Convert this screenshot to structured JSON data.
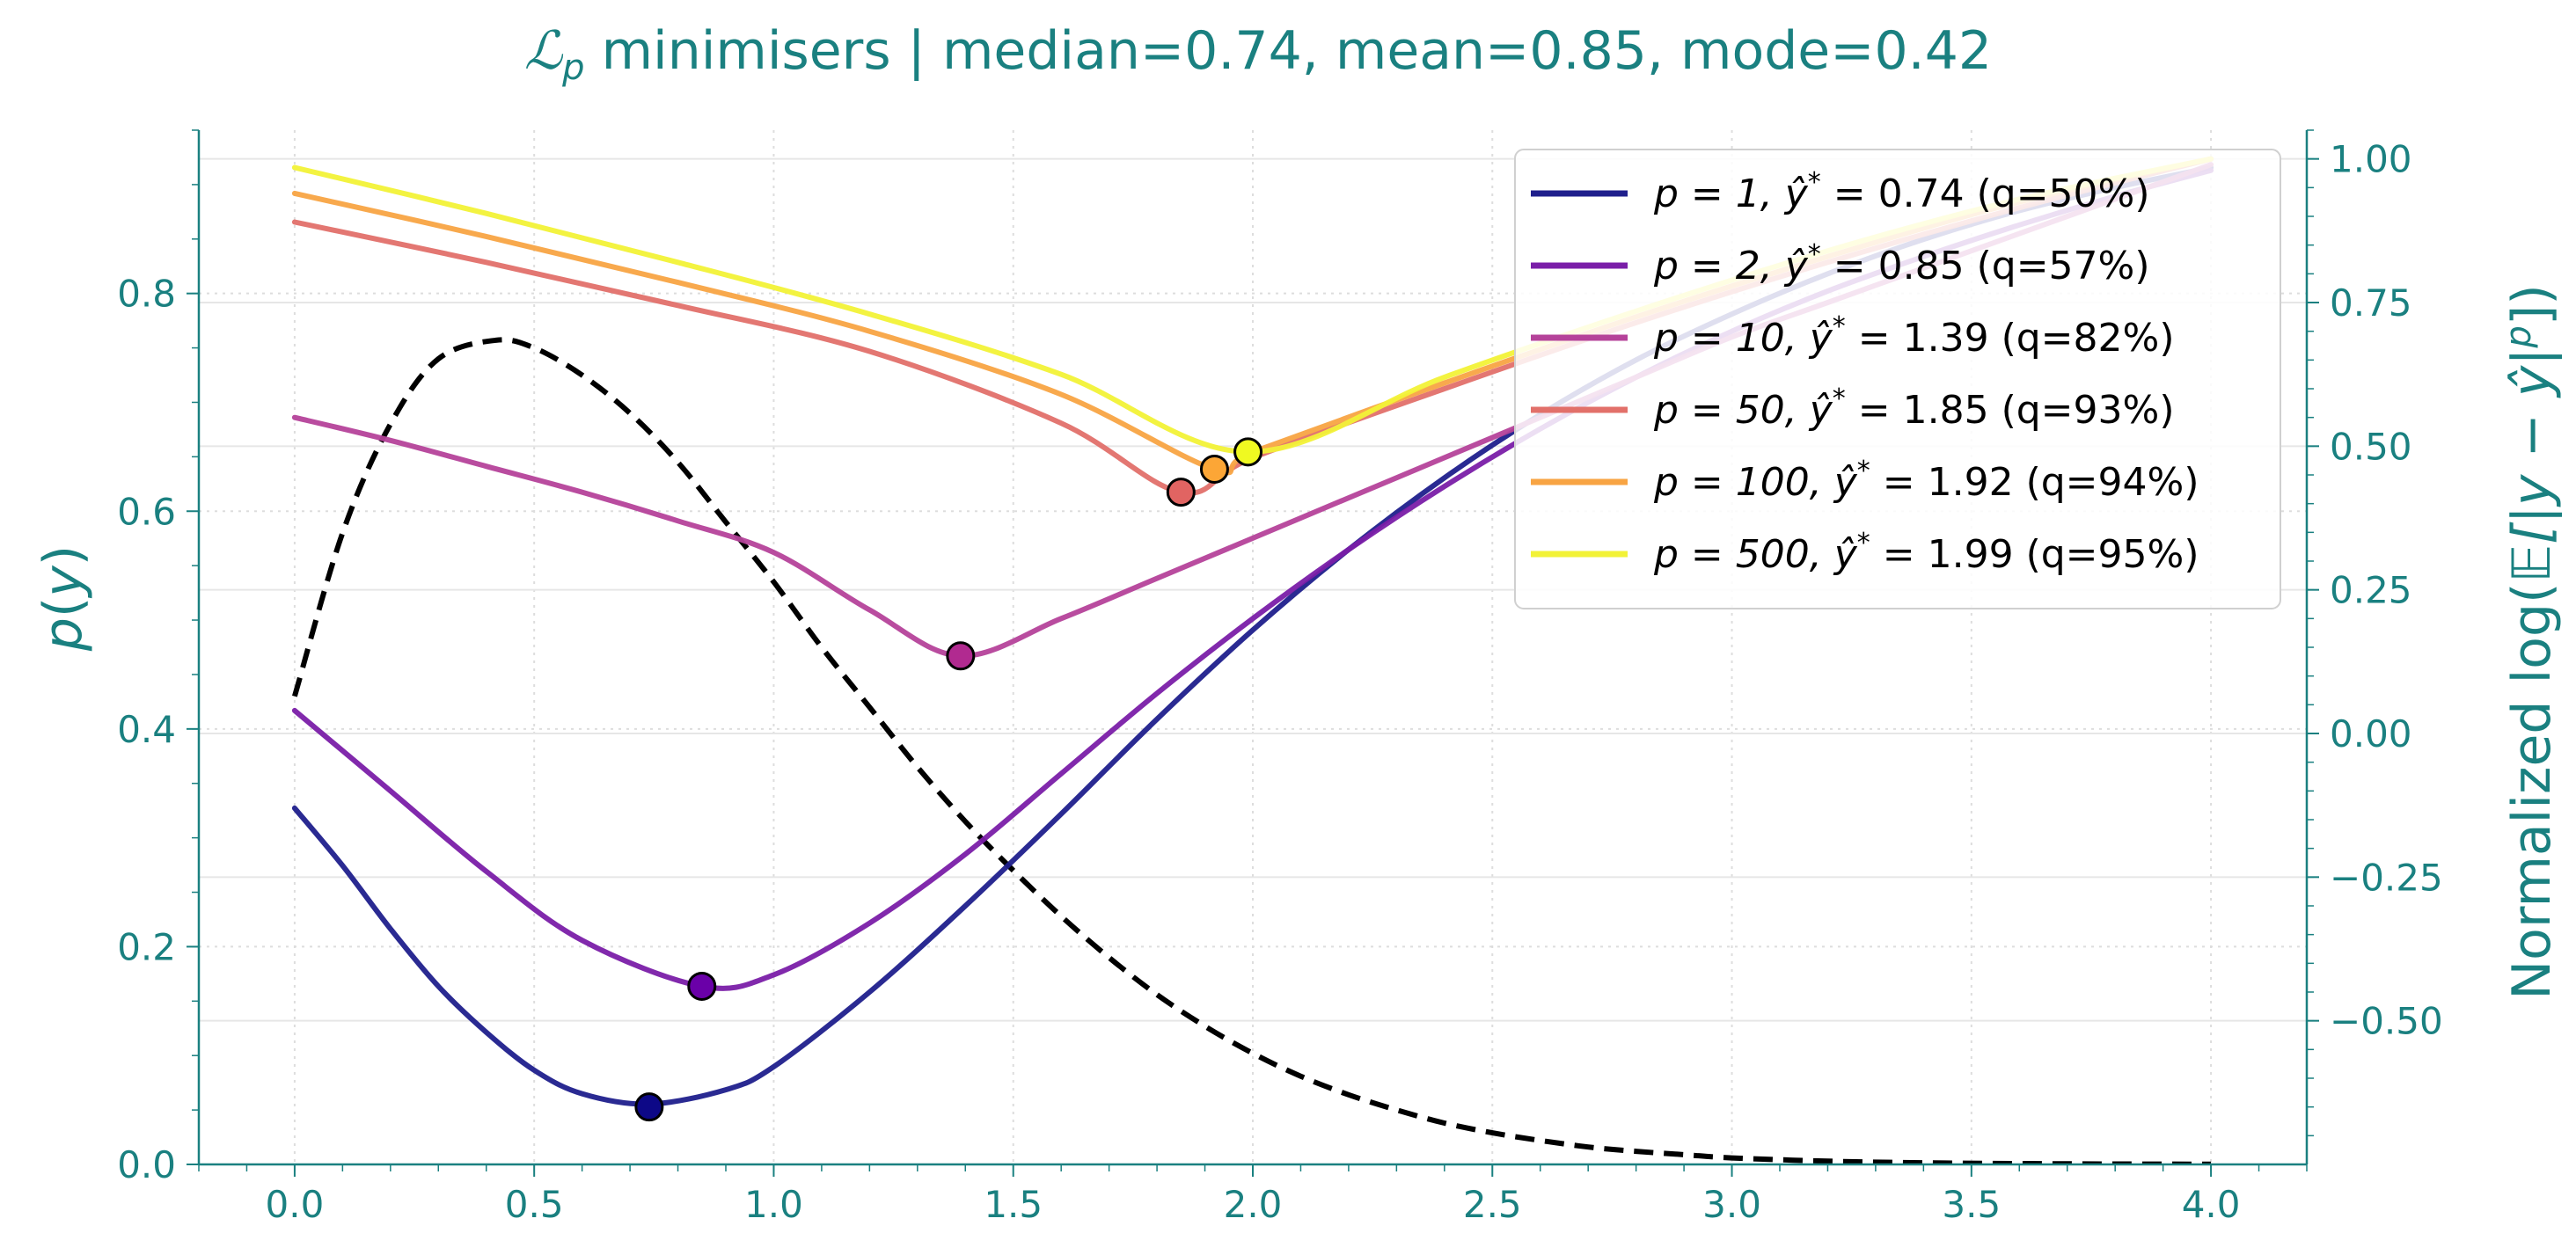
{
  "chart_data": {
    "type": "line",
    "title": "ℒp minimisers | median=0.74, mean=0.85, mode=0.42",
    "title_parts": {
      "script": "ℒ",
      "sub": "p",
      "rest": " minimisers | median=0.74, mean=0.85, mode=0.42"
    },
    "xlabel": "",
    "ylabel_left": "p(y)",
    "ylabel_left_parts": {
      "italic": "p",
      "rest_open": "(",
      "var": "y",
      "rest_close": ")"
    },
    "ylabel_right": "Normalized log(𝔼[|y − ŷ|p])",
    "ylabel_right_parts": {
      "head": "Normalized log(",
      "body": "𝔼[|y − ŷ|",
      "sup": "p",
      "tail": "])"
    },
    "xlim": [
      -0.2,
      4.2
    ],
    "ylim_left": [
      0.0,
      0.95
    ],
    "ylim_right": [
      -0.75,
      1.05
    ],
    "x_ticks": [
      "0.0",
      "0.5",
      "1.0",
      "1.5",
      "2.0",
      "2.5",
      "3.0",
      "3.5",
      "4.0"
    ],
    "y_left_ticks": [
      "0.0",
      "0.2",
      "0.4",
      "0.6",
      "0.8"
    ],
    "y_right_ticks": [
      "−0.50",
      "−0.25",
      "0.00",
      "0.25",
      "0.50",
      "0.75",
      "1.00"
    ],
    "grid": true,
    "legend_position": "top-right",
    "density": {
      "name": "p(y)",
      "style": "dashed",
      "color": "#000000",
      "x": [
        0.0,
        0.1,
        0.2,
        0.3,
        0.42,
        0.5,
        0.6,
        0.7,
        0.8,
        0.9,
        1.0,
        1.1,
        1.2,
        1.3,
        1.4,
        1.5,
        1.6,
        1.7,
        1.8,
        1.9,
        2.0,
        2.1,
        2.2,
        2.3,
        2.4,
        2.5,
        2.6,
        2.7,
        2.8,
        2.9,
        3.0,
        3.2,
        3.4,
        3.6,
        3.8,
        4.0
      ],
      "y": [
        0.43,
        0.58,
        0.68,
        0.74,
        0.757,
        0.75,
        0.725,
        0.69,
        0.645,
        0.59,
        0.535,
        0.475,
        0.42,
        0.365,
        0.315,
        0.27,
        0.228,
        0.19,
        0.156,
        0.127,
        0.102,
        0.081,
        0.064,
        0.05,
        0.038,
        0.029,
        0.022,
        0.016,
        0.012,
        0.009,
        0.006,
        0.003,
        0.0015,
        0.0008,
        0.0004,
        0.0002
      ]
    },
    "series": [
      {
        "label_parts": {
          "p": "p = 1",
          "yhat": "0.74",
          "q": " (q=50%)"
        },
        "color": "#1f1f8c",
        "marker_color": "#0d0887",
        "minimizer": [
          0.74,
          -0.65
        ],
        "x": [
          0.0,
          0.1,
          0.2,
          0.3,
          0.4,
          0.5,
          0.6,
          0.74,
          0.9,
          1.0,
          1.2,
          1.4,
          1.6,
          1.8,
          2.0,
          2.2,
          2.4,
          2.6,
          2.8,
          3.0,
          3.2,
          3.4,
          3.6,
          3.8,
          4.0
        ],
        "values": [
          -0.13,
          -0.23,
          -0.34,
          -0.44,
          -0.52,
          -0.586,
          -0.627,
          -0.645,
          -0.62,
          -0.58,
          -0.45,
          -0.3,
          -0.14,
          0.025,
          0.18,
          0.32,
          0.445,
          0.555,
          0.65,
          0.73,
          0.8,
          0.86,
          0.91,
          0.95,
          0.985
        ]
      },
      {
        "label_parts": {
          "p": "p = 2",
          "yhat": "0.85",
          "q": " (q=57%)"
        },
        "color": "#7a1ea8",
        "marker_color": "#6a00a8",
        "minimizer": [
          0.85,
          -0.44
        ],
        "x": [
          0.0,
          0.2,
          0.4,
          0.6,
          0.85,
          1.0,
          1.2,
          1.4,
          1.6,
          1.8,
          2.0,
          2.2,
          2.4,
          2.6,
          2.8,
          3.0,
          3.2,
          3.4,
          3.6,
          3.8,
          4.0
        ],
        "values": [
          0.04,
          -0.1,
          -0.24,
          -0.36,
          -0.44,
          -0.42,
          -0.33,
          -0.21,
          -0.07,
          0.07,
          0.2,
          0.32,
          0.43,
          0.53,
          0.62,
          0.7,
          0.77,
          0.83,
          0.885,
          0.935,
          0.98
        ]
      },
      {
        "label_parts": {
          "p": "p = 10",
          "yhat": "1.39",
          "q": " (q=82%)"
        },
        "color": "#b5429a",
        "marker_color": "#b12a90",
        "minimizer": [
          1.39,
          0.135
        ],
        "x": [
          0.0,
          0.2,
          0.4,
          0.6,
          0.8,
          1.0,
          1.2,
          1.39,
          1.6,
          1.8,
          2.0,
          2.2,
          2.4,
          2.6,
          2.8,
          3.0,
          3.2,
          3.4,
          3.6,
          3.8,
          4.0
        ],
        "values": [
          0.55,
          0.51,
          0.465,
          0.42,
          0.37,
          0.315,
          0.215,
          0.135,
          0.2,
          0.27,
          0.34,
          0.41,
          0.48,
          0.55,
          0.62,
          0.69,
          0.75,
          0.81,
          0.87,
          0.93,
          0.99
        ]
      },
      {
        "label_parts": {
          "p": "p = 50",
          "yhat": "1.85",
          "q": " (q=93%)"
        },
        "color": "#e2706a",
        "marker_color": "#e16462",
        "minimizer": [
          1.85,
          0.42
        ],
        "x": [
          0.0,
          0.4,
          0.8,
          1.2,
          1.6,
          1.85,
          2.0,
          2.4,
          2.8,
          3.2,
          3.6,
          4.0
        ],
        "values": [
          0.89,
          0.82,
          0.745,
          0.665,
          0.54,
          0.42,
          0.48,
          0.6,
          0.715,
          0.82,
          0.915,
          1.0
        ]
      },
      {
        "label_parts": {
          "p": "p = 100",
          "yhat": "1.92",
          "q": " (q=94%)"
        },
        "color": "#f8a443",
        "marker_color": "#fca636",
        "minimizer": [
          1.92,
          0.46
        ],
        "x": [
          0.0,
          0.4,
          0.8,
          1.2,
          1.6,
          1.92,
          2.0,
          2.4,
          2.8,
          3.2,
          3.6,
          4.0
        ],
        "values": [
          0.94,
          0.865,
          0.785,
          0.7,
          0.59,
          0.46,
          0.49,
          0.61,
          0.725,
          0.83,
          0.925,
          1.0
        ]
      },
      {
        "label_parts": {
          "p": "p = 500",
          "yhat": "1.99",
          "q": " (q=95%)"
        },
        "color": "#f2f237",
        "marker_color": "#f0f921",
        "minimizer": [
          1.99,
          0.49
        ],
        "x": [
          0.0,
          0.4,
          0.8,
          1.2,
          1.6,
          1.99,
          2.4,
          2.8,
          3.2,
          3.6,
          4.0
        ],
        "values": [
          0.985,
          0.905,
          0.82,
          0.73,
          0.625,
          0.49,
          0.62,
          0.735,
          0.84,
          0.93,
          1.0
        ]
      }
    ]
  }
}
